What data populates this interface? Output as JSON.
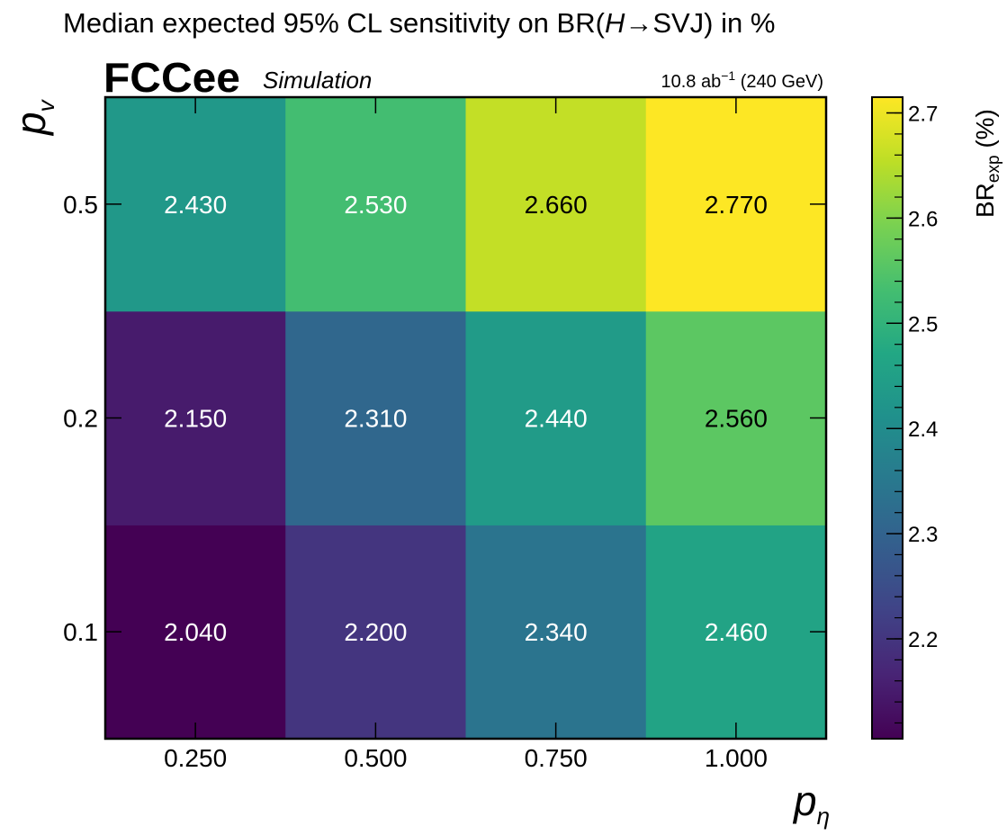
{
  "chart_data": {
    "type": "heatmap",
    "title_parts": {
      "pre": "Median expected 95% CL sensitivity on BR(",
      "higgs": "H",
      "arrow": "→",
      "post": "SVJ) in %"
    },
    "brand": "FCCee",
    "brand_sub": "Simulation",
    "lumi": {
      "value": "10.8 ab",
      "exponent": "−1",
      "energy": "(240 GeV)"
    },
    "x_axis": {
      "symbol": "p",
      "subscript": "η",
      "tick_labels": [
        "0.250",
        "0.500",
        "0.750",
        "1.000"
      ]
    },
    "y_axis": {
      "symbol": "p",
      "subscript": "v",
      "tick_labels": [
        "0.1",
        "0.2",
        "0.5"
      ]
    },
    "x_categories": [
      0.25,
      0.5,
      0.75,
      1.0
    ],
    "y_categories": [
      0.1,
      0.2,
      0.5
    ],
    "cell_labels": [
      [
        "2.040",
        "2.200",
        "2.340",
        "2.460"
      ],
      [
        "2.150",
        "2.310",
        "2.440",
        "2.560"
      ],
      [
        "2.430",
        "2.530",
        "2.660",
        "2.770"
      ]
    ],
    "values": [
      [
        2.04,
        2.2,
        2.34,
        2.46
      ],
      [
        2.15,
        2.31,
        2.44,
        2.56
      ],
      [
        2.43,
        2.53,
        2.66,
        2.77
      ]
    ],
    "colorbar": {
      "label": "BR",
      "label_sub": "exp",
      "label_unit": "(%)",
      "range": [
        2.105,
        2.715
      ],
      "colormap": "viridis",
      "ticks": [
        2.2,
        2.3,
        2.4,
        2.5,
        2.6,
        2.7
      ],
      "tick_labels": [
        "2.2",
        "2.3",
        "2.4",
        "2.5",
        "2.6",
        "2.7"
      ],
      "minor_step": 0.02
    }
  }
}
